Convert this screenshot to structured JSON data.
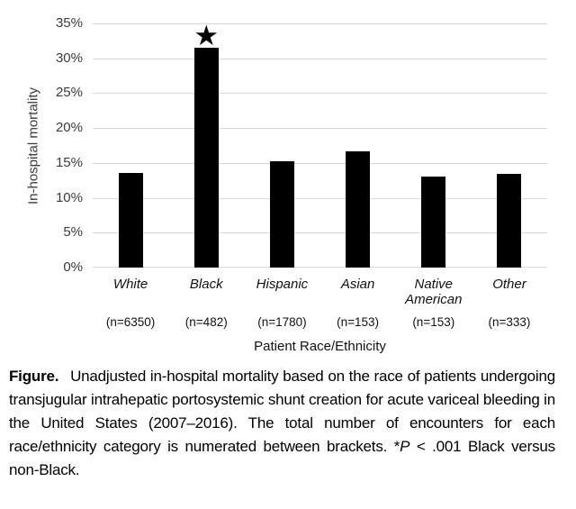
{
  "chart_data": {
    "type": "bar",
    "ylabel": "In-hospital mortality",
    "xlabel": "Patient Race/Ethnicity",
    "ylim": [
      0,
      35
    ],
    "ytick_step": 5,
    "ytick_labels": [
      "0%",
      "5%",
      "10%",
      "15%",
      "20%",
      "25%",
      "30%",
      "35%"
    ],
    "grid": true,
    "legend": "none",
    "bar_color": "#000000",
    "gridline_color": "#d9d9d9",
    "categories": [
      "White",
      "Black",
      "Hispanic",
      "Asian",
      "Native American",
      "Other"
    ],
    "n_labels": [
      "(n=6350)",
      "(n=482)",
      "(n=1780)",
      "(n=153)",
      "(n=153)",
      "(n=333)"
    ],
    "values": [
      13.6,
      31.5,
      15.3,
      16.6,
      13.0,
      13.4
    ],
    "annotation": {
      "category_index": 1,
      "symbol": "★"
    }
  },
  "caption": {
    "parts": [
      {
        "text": "Figure.",
        "bold": true,
        "italic": false
      },
      {
        "text": " Unadjusted in-hospital mortality based on the race of patients undergoing transjugular intrahepatic portosystemic shunt creation for acute variceal bleeding in the United States (2007–2016). The total number of encounters for each race/ethnicity category is numerated between brackets. *",
        "bold": false,
        "italic": false
      },
      {
        "text": "P",
        "bold": false,
        "italic": true
      },
      {
        "text": " < .001 Black versus non-Black.",
        "bold": false,
        "italic": false
      }
    ]
  }
}
